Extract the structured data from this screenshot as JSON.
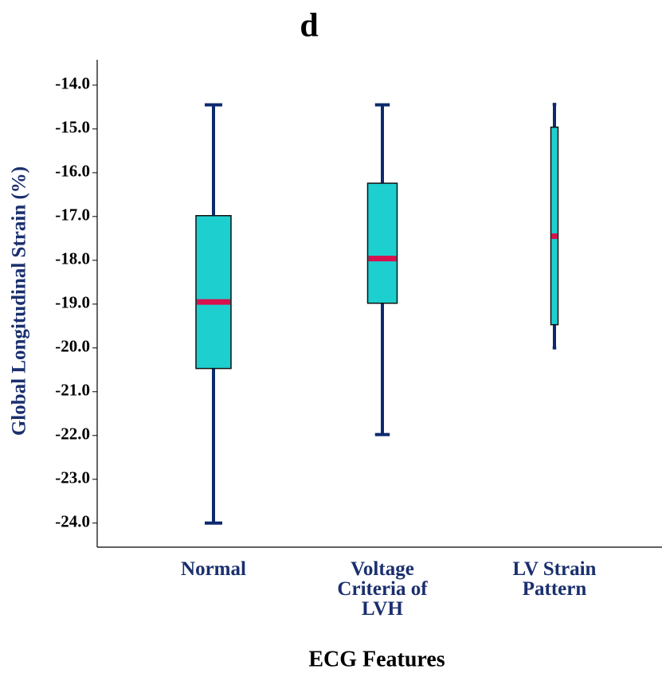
{
  "chart_data": {
    "type": "box",
    "title": "d",
    "x_label": "ECG Features",
    "y_label": "Global Longitudinal Strain (%)",
    "categories": [
      "Normal",
      "Voltage Criteria of LVH",
      "LV Strain Pattern"
    ],
    "boxes": [
      {
        "min": -24.0,
        "q1": -20.47,
        "median": -18.95,
        "q3": -16.98,
        "max": -14.45
      },
      {
        "min": -21.98,
        "q1": -18.98,
        "median": -17.96,
        "q3": -16.24,
        "max": -14.45
      },
      {
        "min": -20.0,
        "q1": -19.47,
        "median": -17.45,
        "q3": -14.96,
        "max": -14.44
      }
    ],
    "box_color": "#1ecfcf",
    "whisker_color": "#0d2a6e",
    "median_color": "#d8104c",
    "ylim": [
      -24.55,
      -13.42
    ],
    "yticks": [
      {
        "value": -14,
        "label": "-14.0"
      },
      {
        "value": -15,
        "label": "-15.0"
      },
      {
        "value": -16,
        "label": "-16.0"
      },
      {
        "value": -17,
        "label": "-17.0"
      },
      {
        "value": -18,
        "label": "-18.0"
      },
      {
        "value": -19,
        "label": "-19.0"
      },
      {
        "value": -20,
        "label": "-20.0"
      },
      {
        "value": -21,
        "label": "-21.0"
      },
      {
        "value": -22,
        "label": "-22.0"
      },
      {
        "value": -23,
        "label": "-23.0"
      },
      {
        "value": -24,
        "label": "-24.0"
      }
    ]
  }
}
